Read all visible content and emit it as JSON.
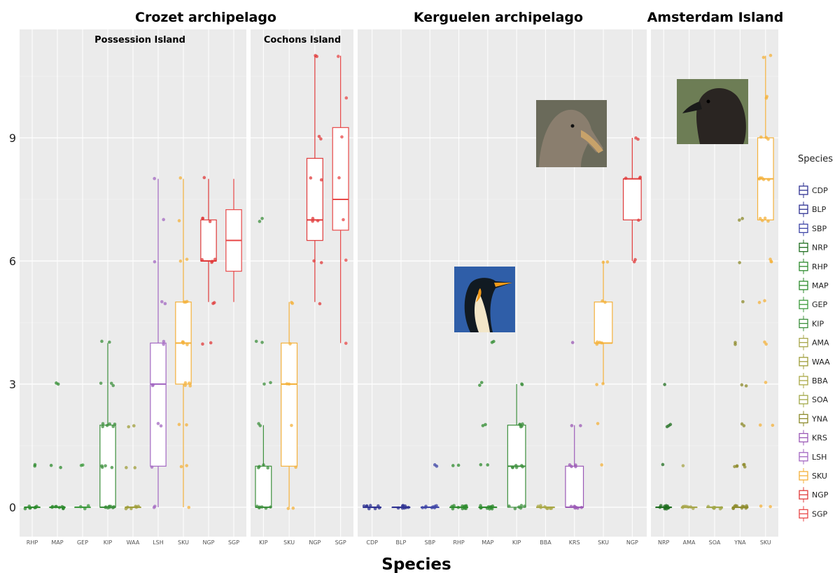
{
  "chart_data": {
    "type": "box",
    "xlabel": "Species",
    "ylabel": "",
    "ylim": [
      -0.8,
      11.5
    ],
    "yticks": [
      0,
      3,
      6,
      9
    ],
    "grid": true,
    "legend": {
      "title": "Species",
      "placement": "right",
      "entries": [
        {
          "name": "CDP",
          "color": "#2e3192"
        },
        {
          "name": "BLP",
          "color": "#2e3192"
        },
        {
          "name": "SBP",
          "color": "#3d44a6"
        },
        {
          "name": "NRP",
          "color": "#1f6e1f"
        },
        {
          "name": "RHP",
          "color": "#2e8b2e"
        },
        {
          "name": "MAP",
          "color": "#2e8b2e"
        },
        {
          "name": "GEP",
          "color": "#3c9a3c"
        },
        {
          "name": "KIP",
          "color": "#3c8f3c"
        },
        {
          "name": "AMA",
          "color": "#a7a64a"
        },
        {
          "name": "WAA",
          "color": "#9f9e3a"
        },
        {
          "name": "BBA",
          "color": "#a9a845"
        },
        {
          "name": "SOA",
          "color": "#a2a849"
        },
        {
          "name": "YNA",
          "color": "#8c8a2a"
        },
        {
          "name": "KRS",
          "color": "#9b59b6"
        },
        {
          "name": "LSH",
          "color": "#a368c2"
        },
        {
          "name": "SKU",
          "color": "#f4b13b"
        },
        {
          "name": "NGP",
          "color": "#e03a3a"
        },
        {
          "name": "SGP",
          "color": "#e84848"
        }
      ]
    },
    "groups": [
      {
        "title": "Crozet archipelago",
        "subpanels": [
          {
            "title": "Possession Island",
            "species": [
              {
                "name": "RHP",
                "q1": 0,
                "median": 0,
                "q3": 0,
                "whisker_low": 0,
                "whisker_high": 0,
                "points": [
                  0,
                  0,
                  0,
                  0,
                  0,
                  0,
                  0,
                  0,
                  1,
                  1
                ]
              },
              {
                "name": "MAP",
                "q1": 0,
                "median": 0,
                "q3": 0,
                "whisker_low": 0,
                "whisker_high": 0,
                "points": [
                  0,
                  0,
                  0,
                  0,
                  0,
                  0,
                  0,
                  0,
                  0,
                  0,
                  1,
                  1,
                  3,
                  3
                ]
              },
              {
                "name": "GEP",
                "q1": 0,
                "median": 0,
                "q3": 0,
                "whisker_low": 0,
                "whisker_high": 0,
                "points": [
                  0,
                  0,
                  0,
                  1,
                  1
                ]
              },
              {
                "name": "KIP",
                "q1": 0,
                "median": 0,
                "q3": 2,
                "whisker_low": 0,
                "whisker_high": 4,
                "points": [
                  0,
                  0,
                  0,
                  0,
                  0,
                  0,
                  0,
                  0,
                  0,
                  0,
                  1,
                  1,
                  1,
                  1,
                  2,
                  2,
                  2,
                  2,
                  2,
                  2,
                  3,
                  3,
                  3,
                  4,
                  4
                ]
              },
              {
                "name": "WAA",
                "q1": 0,
                "median": 0,
                "q3": 0,
                "whisker_low": 0,
                "whisker_high": 0,
                "points": [
                  0,
                  0,
                  0,
                  0,
                  0,
                  0,
                  1,
                  1,
                  2,
                  2
                ]
              },
              {
                "name": "LSH",
                "q1": 1,
                "median": 3,
                "q3": 4,
                "whisker_low": 0,
                "whisker_high": 8,
                "points": [
                  0,
                  0,
                  1,
                  2,
                  2,
                  3,
                  3,
                  4,
                  4,
                  5,
                  5,
                  6,
                  7,
                  8
                ]
              },
              {
                "name": "SKU",
                "q1": 3,
                "median": 4,
                "q3": 5,
                "whisker_low": 0,
                "whisker_high": 8,
                "points": [
                  0,
                  1,
                  1,
                  2,
                  2,
                  3,
                  3,
                  3,
                  3,
                  4,
                  4,
                  4,
                  4,
                  5,
                  5,
                  5,
                  6,
                  6,
                  7,
                  8
                ]
              },
              {
                "name": "NGP",
                "q1": 6,
                "median": 6,
                "q3": 7,
                "whisker_low": 5,
                "whisker_high": 8,
                "points": [
                  4,
                  4,
                  5,
                  5,
                  6,
                  6,
                  6,
                  6,
                  7,
                  7,
                  7,
                  8
                ]
              },
              {
                "name": "SGP",
                "q1": 5.75,
                "median": 6.5,
                "q3": 7.25,
                "whisker_low": 5,
                "whisker_high": 8,
                "points": []
              }
            ]
          },
          {
            "title": "Cochons Island",
            "species": [
              {
                "name": "KIP",
                "q1": 0,
                "median": 0,
                "q3": 1,
                "whisker_low": 0,
                "whisker_high": 2,
                "points": [
                  0,
                  0,
                  0,
                  0,
                  0,
                  0,
                  1,
                  1,
                  1,
                  1,
                  2,
                  2,
                  3,
                  3,
                  4,
                  4,
                  7,
                  7
                ]
              },
              {
                "name": "SKU",
                "q1": 1,
                "median": 3,
                "q3": 4,
                "whisker_low": 0,
                "whisker_high": 5,
                "points": [
                  0,
                  0,
                  1,
                  2,
                  3,
                  3,
                  4,
                  5,
                  5
                ]
              },
              {
                "name": "NGP",
                "q1": 6.5,
                "median": 7,
                "q3": 8.5,
                "whisker_low": 5,
                "whisker_high": 11,
                "points": [
                  5,
                  6,
                  6,
                  7,
                  7,
                  7,
                  8,
                  8,
                  9,
                  9,
                  11,
                  11
                ]
              },
              {
                "name": "SGP",
                "q1": 6.75,
                "median": 7.5,
                "q3": 9.25,
                "whisker_low": 4,
                "whisker_high": 11,
                "points": [
                  4,
                  6,
                  7,
                  8,
                  9,
                  10,
                  11
                ]
              }
            ]
          }
        ]
      },
      {
        "title": "Kerguelen archipelago",
        "subpanels": [
          {
            "title": "",
            "species": [
              {
                "name": "CDP",
                "q1": 0,
                "median": 0,
                "q3": 0,
                "whisker_low": 0,
                "whisker_high": 0,
                "points": [
                  0,
                  0,
                  0,
                  0,
                  0,
                  0,
                  0,
                  0
                ]
              },
              {
                "name": "BLP",
                "q1": 0,
                "median": 0,
                "q3": 0,
                "whisker_low": 0,
                "whisker_high": 0,
                "points": [
                  0,
                  0,
                  0,
                  0,
                  0,
                  0,
                  0,
                  0
                ]
              },
              {
                "name": "SBP",
                "q1": 0,
                "median": 0,
                "q3": 0,
                "whisker_low": 0,
                "whisker_high": 0,
                "points": [
                  0,
                  0,
                  0,
                  0,
                  0,
                  0,
                  0,
                  0,
                  1,
                  1
                ]
              },
              {
                "name": "RHP",
                "q1": 0,
                "median": 0,
                "q3": 0,
                "whisker_low": 0,
                "whisker_high": 0,
                "points": [
                  0,
                  0,
                  0,
                  0,
                  0,
                  0,
                  0,
                  0,
                  0,
                  0,
                  0,
                  0,
                  1,
                  1
                ]
              },
              {
                "name": "MAP",
                "q1": 0,
                "median": 0,
                "q3": 0,
                "whisker_low": 0,
                "whisker_high": 0,
                "points": [
                  0,
                  0,
                  0,
                  0,
                  0,
                  0,
                  0,
                  0,
                  0,
                  0,
                  0,
                  0,
                  1,
                  1,
                  2,
                  2,
                  3,
                  3,
                  4,
                  4
                ]
              },
              {
                "name": "KIP",
                "q1": 0,
                "median": 1,
                "q3": 2,
                "whisker_low": 0,
                "whisker_high": 3,
                "points": [
                  0,
                  0,
                  0,
                  0,
                  0,
                  0,
                  1,
                  1,
                  1,
                  1,
                  1,
                  1,
                  2,
                  2,
                  2,
                  2,
                  2,
                  3,
                  3
                ]
              },
              {
                "name": "BBA",
                "q1": 0,
                "median": 0,
                "q3": 0,
                "whisker_low": 0,
                "whisker_high": 0,
                "points": [
                  0,
                  0,
                  0,
                  0,
                  0,
                  0,
                  0,
                  0
                ]
              },
              {
                "name": "KRS",
                "q1": 0,
                "median": 0,
                "q3": 1,
                "whisker_low": 0,
                "whisker_high": 2,
                "points": [
                  0,
                  0,
                  0,
                  0,
                  0,
                  0,
                  0,
                  1,
                  1,
                  1,
                  1,
                  2,
                  2,
                  4
                ]
              },
              {
                "name": "SKU",
                "q1": 4,
                "median": 4,
                "q3": 5,
                "whisker_low": 3,
                "whisker_high": 6,
                "points": [
                  1,
                  2,
                  3,
                  3,
                  4,
                  4,
                  4,
                  4,
                  5,
                  5,
                  6,
                  6
                ]
              },
              {
                "name": "NGP",
                "q1": 7,
                "median": 8,
                "q3": 8,
                "whisker_low": 6,
                "whisker_high": 9,
                "points": [
                  6,
                  6,
                  7,
                  8,
                  8,
                  8,
                  9,
                  9
                ]
              }
            ]
          }
        ]
      },
      {
        "title": "Amsterdam Island",
        "subpanels": [
          {
            "title": "",
            "species": [
              {
                "name": "NRP",
                "q1": 0,
                "median": 0,
                "q3": 0,
                "whisker_low": 0,
                "whisker_high": 0,
                "points": [
                  0,
                  0,
                  0,
                  0,
                  0,
                  0,
                  0,
                  0,
                  0,
                  0,
                  0,
                  0,
                  1,
                  2,
                  2,
                  2,
                  3
                ]
              },
              {
                "name": "AMA",
                "q1": 0,
                "median": 0,
                "q3": 0,
                "whisker_low": 0,
                "whisker_high": 0,
                "points": [
                  0,
                  0,
                  0,
                  0,
                  0,
                  0,
                  0,
                  1
                ]
              },
              {
                "name": "SOA",
                "q1": 0,
                "median": 0,
                "q3": 0,
                "whisker_low": 0,
                "whisker_high": 0,
                "points": [
                  0,
                  0,
                  0,
                  0,
                  0,
                  0,
                  0,
                  0
                ]
              },
              {
                "name": "YNA",
                "q1": 0,
                "median": 0,
                "q3": 0,
                "whisker_low": 0,
                "whisker_high": 0,
                "points": [
                  0,
                  0,
                  0,
                  0,
                  0,
                  0,
                  0,
                  0,
                  0,
                  0,
                  0,
                  1,
                  1,
                  1,
                  1,
                  1,
                  1,
                  2,
                  2,
                  3,
                  3,
                  4,
                  4,
                  5,
                  6,
                  7,
                  7
                ]
              },
              {
                "name": "SKU",
                "q1": 7,
                "median": 8,
                "q3": 9,
                "whisker_low": 7,
                "whisker_high": 11,
                "points": [
                  0,
                  0,
                  2,
                  2,
                  3,
                  4,
                  4,
                  5,
                  5,
                  6,
                  6,
                  6,
                  7,
                  7,
                  7,
                  7,
                  8,
                  8,
                  8,
                  8,
                  8,
                  9,
                  9,
                  9,
                  10,
                  10,
                  11,
                  11
                ]
              }
            ]
          }
        ]
      }
    ]
  },
  "photos": [
    {
      "subject": "penguin-photo",
      "colors": {
        "sky": "#2f5ea8",
        "body": "#111a22",
        "belly": "#f2e6c8",
        "accent": "#f29a1a"
      }
    },
    {
      "subject": "giant-petrel-photo",
      "colors": {
        "bg": "#6a6a5a",
        "body": "#8a7e6e",
        "beak": "#c7a26a"
      }
    },
    {
      "subject": "skua-photo",
      "colors": {
        "bg": "#6d7d55",
        "body": "#2a2522",
        "beak": "#1a1a1a"
      }
    }
  ]
}
